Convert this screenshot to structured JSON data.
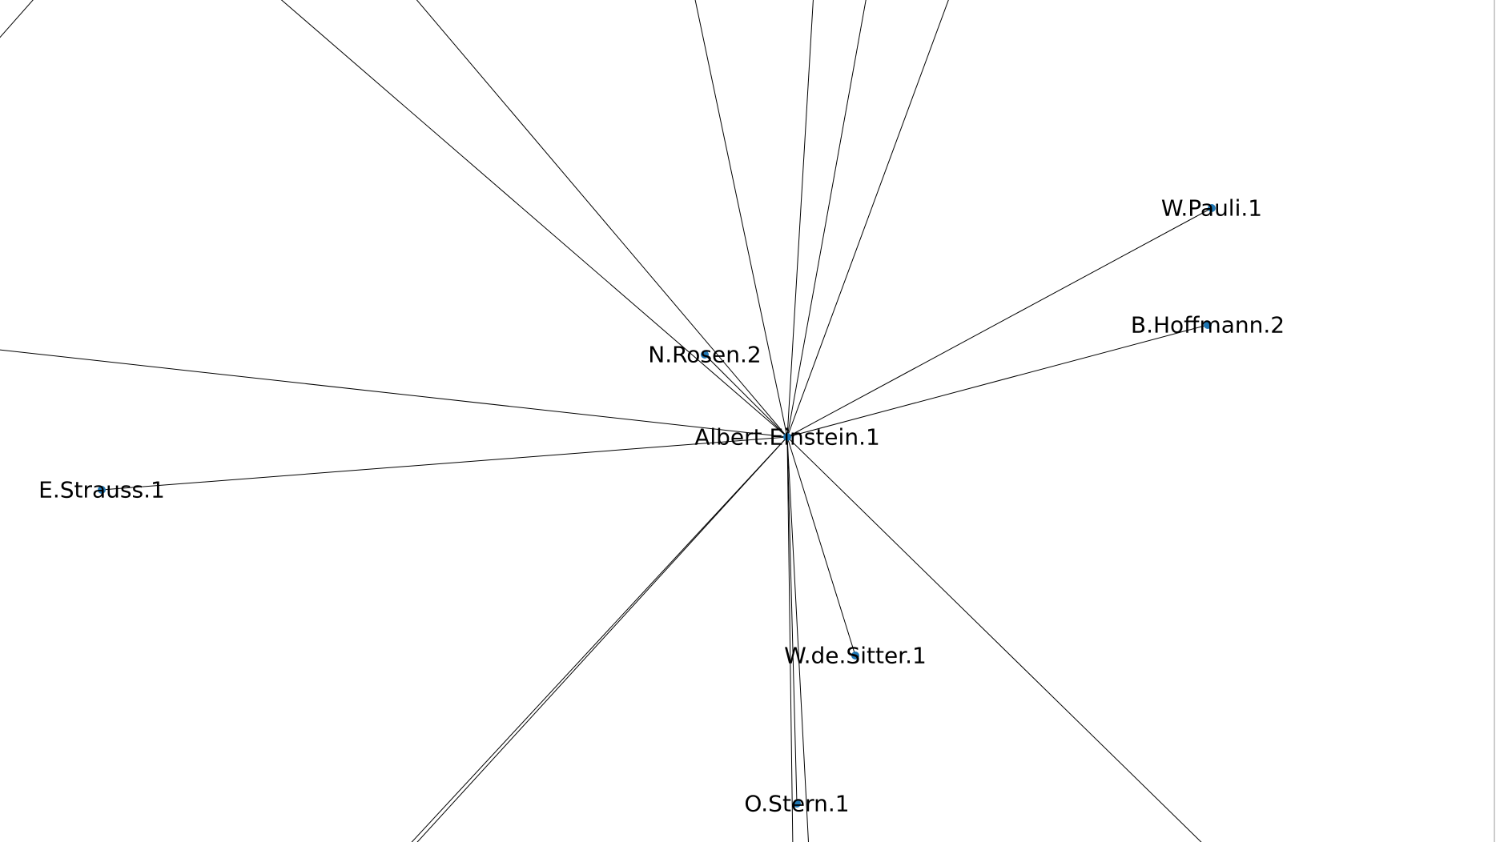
{
  "graph": {
    "node_color": "#1f77b4",
    "edge_color": "#000000",
    "nodes": [
      {
        "id": "einstein",
        "label": "Albert.Einstein.1"
      },
      {
        "id": "pauli",
        "label": "W.Pauli.1"
      },
      {
        "id": "hoffmann",
        "label": "B.Hoffmann.2"
      },
      {
        "id": "rosen",
        "label": "N.Rosen.2"
      },
      {
        "id": "strauss",
        "label": "E.Strauss.1"
      },
      {
        "id": "sitter",
        "label": "W.de.Sitter.1"
      },
      {
        "id": "stern",
        "label": "O.Stern.1"
      }
    ],
    "edges": [
      {
        "source": "einstein",
        "target": "pauli"
      },
      {
        "source": "einstein",
        "target": "hoffmann"
      },
      {
        "source": "einstein",
        "target": "rosen"
      },
      {
        "source": "einstein",
        "target": "strauss"
      },
      {
        "source": "einstein",
        "target": "sitter"
      },
      {
        "source": "einstein",
        "target": "stern"
      }
    ]
  }
}
